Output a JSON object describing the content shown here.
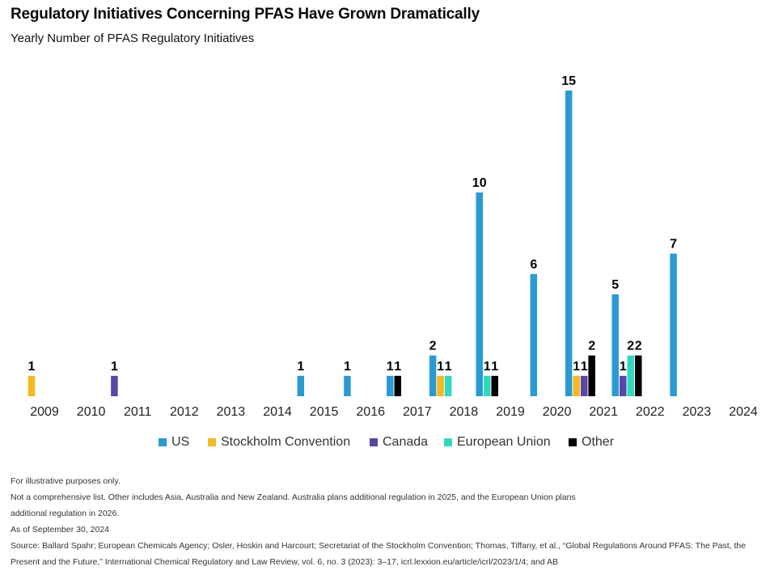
{
  "header": {
    "title": "Regulatory Initiatives Concerning PFAS Have Grown Dramatically",
    "subtitle": "Yearly Number of PFAS Regulatory Initiatives"
  },
  "colors": {
    "US": "#2a9bd2",
    "Stockholm Convention": "#f5b823",
    "Canada": "#5a46a6",
    "European Union": "#2fd9c0",
    "Other": "#000000"
  },
  "chart_data": {
    "type": "bar",
    "categories": [
      "2009",
      "2010",
      "2011",
      "2012",
      "2013",
      "2014",
      "2015",
      "2016",
      "2017",
      "2018",
      "2019",
      "2020",
      "2021",
      "2022",
      "2023",
      "2024"
    ],
    "series": [
      {
        "name": "US",
        "values": [
          0,
          0,
          0,
          0,
          0,
          0,
          1,
          1,
          1,
          2,
          10,
          6,
          15,
          5,
          7,
          0
        ]
      },
      {
        "name": "Stockholm Convention",
        "values": [
          1,
          0,
          0,
          0,
          0,
          0,
          0,
          0,
          0,
          1,
          0,
          0,
          1,
          0,
          0,
          0
        ]
      },
      {
        "name": "Canada",
        "values": [
          0,
          0,
          1,
          0,
          0,
          0,
          0,
          0,
          0,
          0,
          0,
          0,
          1,
          1,
          0,
          0
        ]
      },
      {
        "name": "European Union",
        "values": [
          0,
          0,
          0,
          0,
          0,
          0,
          0,
          0,
          0,
          1,
          1,
          0,
          0,
          2,
          0,
          0
        ]
      },
      {
        "name": "Other",
        "values": [
          0,
          0,
          0,
          0,
          0,
          0,
          0,
          0,
          1,
          0,
          1,
          0,
          2,
          2,
          0,
          0
        ]
      }
    ],
    "data_labels": true,
    "grid": false,
    "legend_position": "bottom",
    "ylim": [
      0,
      15
    ]
  },
  "legend": {
    "items": [
      "US",
      "Stockholm Convention",
      "Canada",
      "European Union",
      "Other"
    ]
  },
  "notes": {
    "illustrative": "For illustrative purposes only.",
    "line1": "Not a comprehensive list. Other includes Asia, Australia and New Zealand. Australia plans additional regulation in 2025, and the European Union plans",
    "line2": "additional regulation in 2026.",
    "as_of": "As of September 30, 2024",
    "source1": "Source: Ballard Spahr; European Chemicals Agency; Osler, Hoskin and Harcourt; Secretariat of the Stockholm Convention; Thomas, Tiffany, et al., “Global Regulations Around PFAS: The Past, the",
    "source2": "Present and the Future,” International Chemical Regulatory and Law Review, vol. 6, no. 3 (2023): 3–17, icrl.lexxion.eu/article/icrl/2023/1/4; and AB"
  }
}
